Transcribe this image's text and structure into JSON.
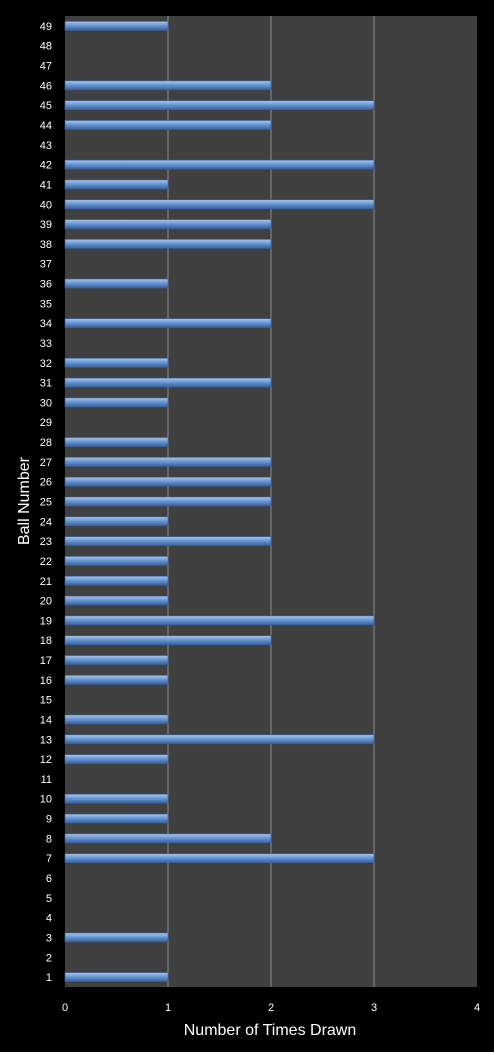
{
  "chart_data": {
    "type": "bar",
    "orientation": "horizontal",
    "title": "",
    "xlabel": "Number of Times Drawn",
    "ylabel": "Ball Number",
    "xlim": [
      0,
      4
    ],
    "x_ticks": [
      "0",
      "1",
      "2",
      "3",
      "4"
    ],
    "grid": "vertical",
    "legend": "none",
    "categories": [
      "1",
      "2",
      "3",
      "4",
      "5",
      "6",
      "7",
      "8",
      "9",
      "10",
      "11",
      "12",
      "13",
      "14",
      "15",
      "16",
      "17",
      "18",
      "19",
      "20",
      "21",
      "22",
      "23",
      "24",
      "25",
      "26",
      "27",
      "28",
      "29",
      "30",
      "31",
      "32",
      "33",
      "34",
      "35",
      "36",
      "37",
      "38",
      "39",
      "40",
      "41",
      "42",
      "43",
      "44",
      "45",
      "46",
      "47",
      "48",
      "49"
    ],
    "values": [
      1,
      0,
      1,
      0,
      0,
      0,
      3,
      2,
      1,
      1,
      0,
      1,
      3,
      1,
      0,
      1,
      1,
      2,
      3,
      1,
      1,
      1,
      2,
      1,
      2,
      2,
      2,
      1,
      0,
      1,
      2,
      1,
      0,
      2,
      0,
      1,
      0,
      2,
      2,
      3,
      1,
      3,
      0,
      2,
      3,
      2,
      0,
      0,
      1
    ],
    "colors": {
      "background": "#000000",
      "plot_area": "#404040",
      "gridline": "#8c8c8c",
      "bar": "#4f81bd",
      "bar_highlight": "#9fc0ea",
      "text": "#ffffff"
    }
  }
}
